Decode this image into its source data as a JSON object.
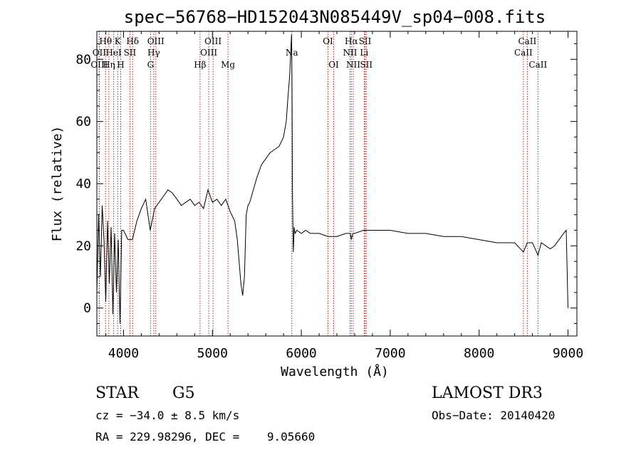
{
  "chart_data": {
    "type": "line",
    "title": "spec−56768−HD152043N085449V_sp04−008.fits",
    "xlabel": "Wavelength (Å)",
    "ylabel": "Flux (relative)",
    "xlim": [
      3700,
      9100
    ],
    "ylim": [
      -9,
      89
    ],
    "x_ticks": [
      4000,
      5000,
      6000,
      7000,
      8000,
      9000
    ],
    "x_tick_labels": [
      "4000",
      "5000",
      "6000",
      "7000",
      "8000",
      "9000"
    ],
    "y_ticks": [
      0,
      20,
      40,
      60,
      80
    ],
    "y_tick_labels": [
      "0",
      "20",
      "40",
      "60",
      "80"
    ],
    "series": [
      {
        "name": "flux",
        "color": "#000000",
        "x": [
          3700,
          3720,
          3740,
          3760,
          3780,
          3800,
          3820,
          3840,
          3860,
          3880,
          3900,
          3920,
          3940,
          3960,
          3980,
          4000,
          4050,
          4100,
          4150,
          4200,
          4250,
          4300,
          4350,
          4400,
          4450,
          4500,
          4550,
          4600,
          4650,
          4700,
          4750,
          4800,
          4850,
          4900,
          4950,
          5000,
          5050,
          5100,
          5150,
          5200,
          5250,
          5280,
          5300,
          5320,
          5340,
          5360,
          5380,
          5400,
          5420,
          5450,
          5500,
          5550,
          5600,
          5650,
          5700,
          5750,
          5800,
          5830,
          5850,
          5870,
          5880,
          5890,
          5895,
          5900,
          5910,
          5920,
          5930,
          5950,
          6000,
          6050,
          6100,
          6200,
          6300,
          6400,
          6500,
          6550,
          6563,
          6580,
          6600,
          6700,
          6800,
          7000,
          7200,
          7400,
          7600,
          7800,
          8000,
          8200,
          8400,
          8498,
          8542,
          8600,
          8662,
          8700,
          8750,
          8800,
          8850,
          8900,
          8950,
          8980,
          9000
        ],
        "y": [
          5,
          30,
          10,
          33,
          22,
          2,
          28,
          8,
          26,
          -2,
          24,
          5,
          22,
          -5,
          25,
          25,
          22,
          22,
          28,
          32,
          35,
          25,
          32,
          34,
          36,
          38,
          37,
          35,
          33,
          34,
          35,
          33,
          34,
          32,
          38,
          34,
          35,
          33,
          35,
          31,
          28,
          22,
          15,
          8,
          4,
          10,
          30,
          33,
          34,
          37,
          42,
          46,
          48,
          50,
          51,
          52,
          55,
          60,
          68,
          75,
          82,
          88,
          72,
          38,
          18,
          26,
          24,
          25,
          24,
          25,
          24,
          24,
          23,
          23,
          24,
          24,
          22,
          24,
          24,
          25,
          25,
          25,
          24,
          24,
          23,
          23,
          22,
          21,
          21,
          18,
          21,
          21,
          17,
          21,
          20,
          19,
          20,
          22,
          24,
          25,
          0
        ]
      }
    ],
    "spectral_lines": [
      {
        "label": "Hθ",
        "x": 3798,
        "tier": 1
      },
      {
        "label": "OII",
        "x": 3727,
        "tier": 2
      },
      {
        "label": "OIII",
        "x": 3727,
        "tier": 3
      },
      {
        "label": "K",
        "x": 3934,
        "tier": 1
      },
      {
        "label": "HeI",
        "x": 3889,
        "tier": 2
      },
      {
        "label": "Hη",
        "x": 3835,
        "tier": 3
      },
      {
        "label": "H",
        "x": 3968,
        "tier": 3
      },
      {
        "label": "Hδ",
        "x": 4102,
        "tier": 1
      },
      {
        "label": "SII",
        "x": 4072,
        "tier": 2
      },
      {
        "label": "OIII",
        "x": 4363,
        "tier": 1
      },
      {
        "label": "Hγ",
        "x": 4340,
        "tier": 2
      },
      {
        "label": "G",
        "x": 4304,
        "tier": 3
      },
      {
        "label": "OIII",
        "x": 5007,
        "tier": 1
      },
      {
        "label": "OIII",
        "x": 4959,
        "tier": 2
      },
      {
        "label": "Hβ",
        "x": 4861,
        "tier": 3
      },
      {
        "label": "Mg",
        "x": 5175,
        "tier": 3
      },
      {
        "label": "Na",
        "x": 5893,
        "tier": 2
      },
      {
        "label": "OI",
        "x": 6300,
        "tier": 1
      },
      {
        "label": "OI",
        "x": 6364,
        "tier": 3
      },
      {
        "label": "Hα",
        "x": 6563,
        "tier": 1
      },
      {
        "label": "NII",
        "x": 6548,
        "tier": 2
      },
      {
        "label": "NII",
        "x": 6584,
        "tier": 3
      },
      {
        "label": "SII",
        "x": 6717,
        "tier": 1
      },
      {
        "label": "Li",
        "x": 6707,
        "tier": 2
      },
      {
        "label": "SII",
        "x": 6731,
        "tier": 3
      },
      {
        "label": "CaII",
        "x": 8542,
        "tier": 1
      },
      {
        "label": "CaII",
        "x": 8498,
        "tier": 2
      },
      {
        "label": "CaII",
        "x": 8662,
        "tier": 3
      }
    ],
    "line_marker_color": "#b22222"
  },
  "info": {
    "object_class": "STAR",
    "subclass": "G5",
    "survey": "LAMOST DR3",
    "cz": "cz = −34.0 ± 8.5 km/s",
    "obs_date": "Obs−Date: 20140420",
    "coords": "RA = 229.98296, DEC =    9.05660"
  }
}
